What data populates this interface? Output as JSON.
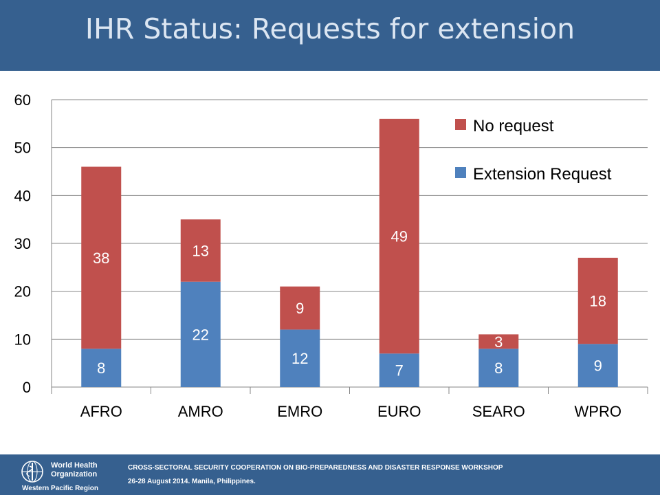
{
  "header": {
    "title": "IHR Status: Requests for extension"
  },
  "chart_data": {
    "type": "bar",
    "stacked": true,
    "title": "",
    "xlabel": "",
    "ylabel": "",
    "categories": [
      "AFRO",
      "AMRO",
      "EMRO",
      "EURO",
      "SEARO",
      "WPRO"
    ],
    "series": [
      {
        "name": "Extension Request",
        "values": [
          8,
          22,
          12,
          7,
          8,
          9
        ],
        "color": "#4f81bd"
      },
      {
        "name": "No request",
        "values": [
          38,
          13,
          9,
          49,
          3,
          18
        ],
        "color": "#c0504d"
      }
    ],
    "ylim": [
      0,
      60
    ],
    "yticks": [
      "0",
      "10",
      "20",
      "30",
      "40",
      "50",
      "60"
    ],
    "grid": true,
    "data_labels": true,
    "legend_position": "top-right"
  },
  "footer": {
    "logo": {
      "line1": "World Health",
      "line2": "Organization",
      "line3": "Western Pacific Region"
    },
    "line1": "CROSS-SECTORAL SECURITY COOPERATION ON BIO-PREPAREDNESS AND DISASTER RESPONSE WORKSHOP",
    "line2": "26-28 August 2014. Manila, Philippines."
  }
}
